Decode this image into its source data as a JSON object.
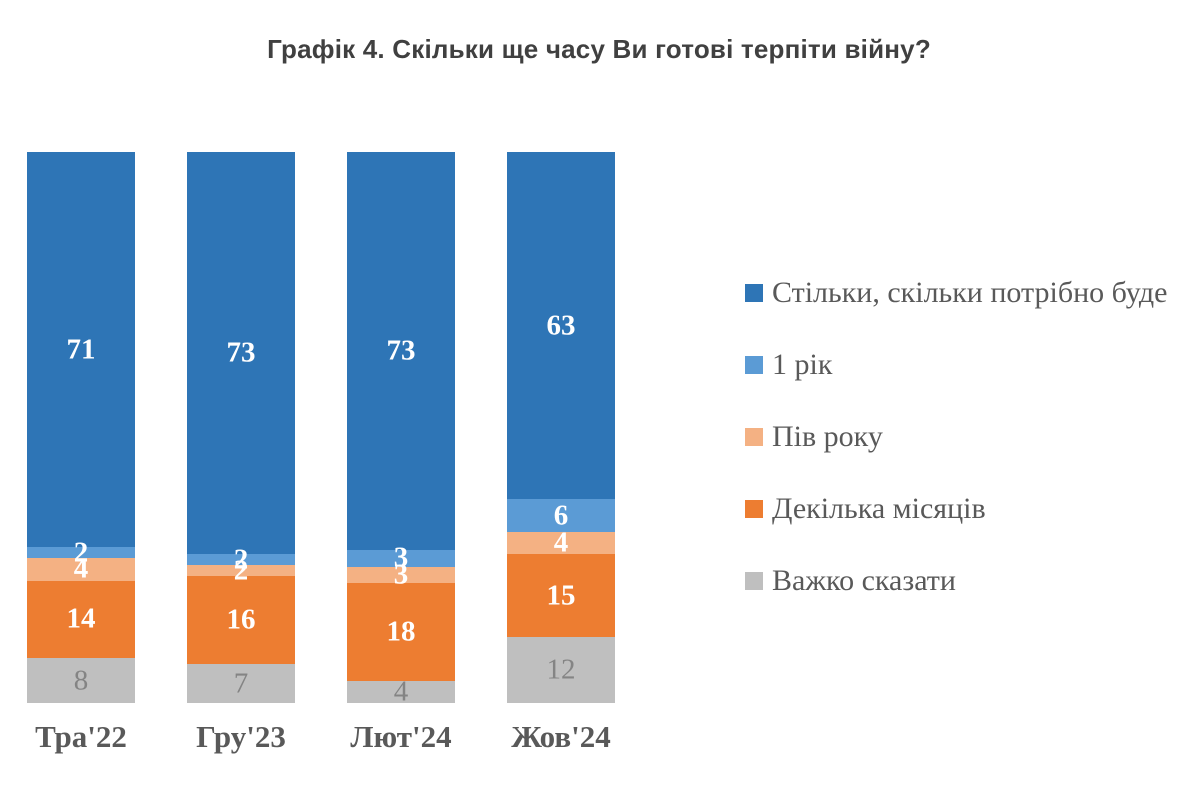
{
  "title": "Графік 4. Скільки ще часу Ви готові терпіти війну?",
  "colors": {
    "title_text": "#404040",
    "axis_text": "#595959",
    "muted_label": "#848484",
    "background": "#ffffff"
  },
  "chart_data": {
    "type": "bar",
    "subtype": "stacked-100-percent-column",
    "title": "Графік 4. Скільки ще часу Ви готові терпіти війну?",
    "xlabel": "",
    "ylabel": "",
    "axes_hidden": true,
    "grid": false,
    "data_labels": true,
    "legend_position": "right",
    "categories": [
      "Тра'22",
      "Гру'23",
      "Лют'24",
      "Жов'24"
    ],
    "series": [
      {
        "name": "Стільки, скільки потрібно буде",
        "color": "#2E75B6",
        "label_color": "#FFFFFF",
        "values": [
          71,
          73,
          73,
          63
        ]
      },
      {
        "name": "1 рік",
        "color": "#5B9BD5",
        "label_color": "#FFFFFF",
        "values": [
          2,
          2,
          3,
          6
        ]
      },
      {
        "name": "Пів року",
        "color": "#F4B183",
        "label_color": "#FFFFFF",
        "values": [
          4,
          2,
          3,
          4
        ]
      },
      {
        "name": "Декілька місяців",
        "color": "#ED7D31",
        "label_color": "#FFFFFF",
        "values": [
          14,
          16,
          18,
          15
        ]
      },
      {
        "name": "Важко сказати",
        "color": "#BFBFBF",
        "label_color": "#848484",
        "values": [
          8,
          7,
          4,
          12
        ]
      }
    ]
  }
}
